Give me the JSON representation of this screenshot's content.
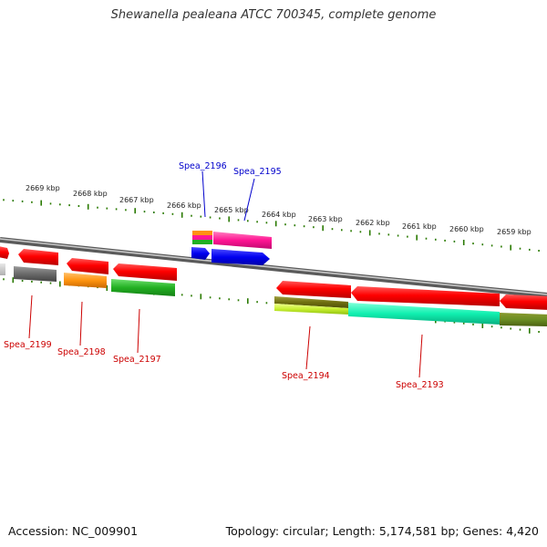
{
  "title": "Shewanella pealeana ATCC 700345, complete genome",
  "footer": {
    "accession": "Accession: NC_009901",
    "topology": "Topology: circular; Length: 5,174,581 bp; Genes: 4,420"
  },
  "colors": {
    "forward_label": "#0000cc",
    "reverse_label": "#cc0000",
    "tick": "#2a7a00",
    "backbone": "#888888"
  },
  "ticks": [
    {
      "label": "2669 kbp"
    },
    {
      "label": "2668 kbp"
    },
    {
      "label": "2667 kbp"
    },
    {
      "label": "2666 kbp"
    },
    {
      "label": "2665 kbp"
    },
    {
      "label": "2664 kbp"
    },
    {
      "label": "2663 kbp"
    },
    {
      "label": "2662 kbp"
    },
    {
      "label": "2661 kbp"
    },
    {
      "label": "2660 kbp"
    },
    {
      "label": "2659 kbp"
    }
  ],
  "gene_labels": [
    {
      "text": "Spea_2196",
      "strand": "forward"
    },
    {
      "text": "Spea_2195",
      "strand": "forward"
    },
    {
      "text": "Spea_2199",
      "strand": "reverse"
    },
    {
      "text": "Spea_2198",
      "strand": "reverse"
    },
    {
      "text": "Spea_2197",
      "strand": "reverse"
    },
    {
      "text": "Spea_2194",
      "strand": "reverse"
    },
    {
      "text": "Spea_2193",
      "strand": "reverse"
    }
  ]
}
